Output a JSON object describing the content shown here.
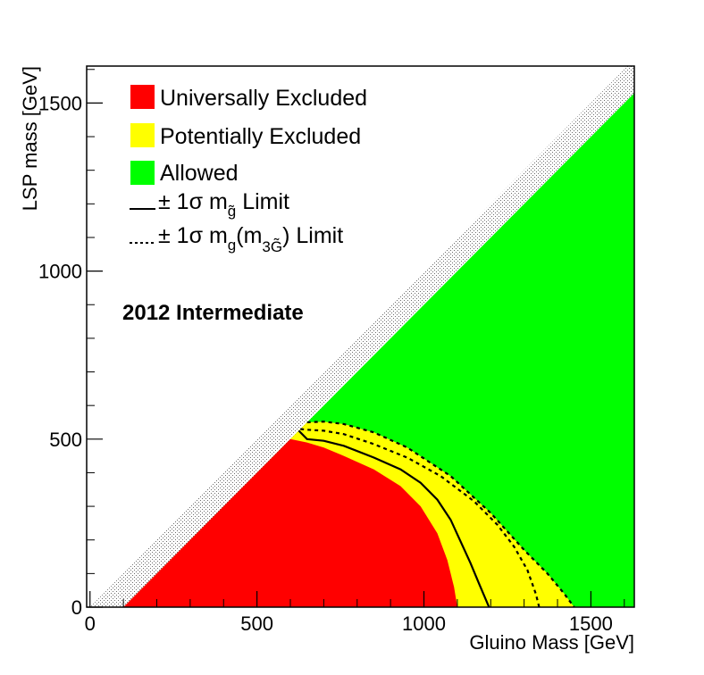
{
  "chart_data": {
    "type": "area",
    "xlabel": "Gluino Mass [GeV]",
    "ylabel": "LSP mass [GeV]",
    "xlim": [
      -10,
      1630
    ],
    "ylim": [
      0,
      1610
    ],
    "xticks": [
      0,
      500,
      1000,
      1500
    ],
    "yticks": [
      0,
      500,
      1000,
      1500
    ],
    "xtick_labels": [
      "0",
      "500",
      "1000",
      "1500"
    ],
    "ytick_labels": [
      "0",
      "500",
      "1000",
      "1500"
    ],
    "annotation": "2012 Intermediate",
    "legend": {
      "placement": "top-left",
      "entries": [
        {
          "label": "Universally Excluded",
          "color": "#ff0000",
          "kind": "box"
        },
        {
          "label": "Potentially Excluded",
          "color": "#ffff00",
          "kind": "box"
        },
        {
          "label": "Allowed",
          "color": "#00ff00",
          "kind": "box"
        },
        {
          "label_main": "± 1σ m",
          "label_sub": "g̃",
          "label_tail": " Limit",
          "kind": "solid-line"
        },
        {
          "label_main": "± 1σ m",
          "label_sub": "g",
          "label_mid": "(m",
          "label_sub2": "3G̃",
          "label_tail": ") Limit",
          "kind": "dashed-line"
        }
      ]
    },
    "colors": {
      "universal": "#ff0000",
      "potential": "#ffff00",
      "allowed": "#00ff00",
      "forbidden_hatch": "#7a7a7a"
    },
    "kinematic_limit": {
      "name": "diagonal LSP = gluino",
      "points": [
        [
          0,
          0
        ],
        [
          1600,
          1600
        ]
      ]
    },
    "forbidden_band": {
      "name": "hatched near-diagonal band",
      "offset_gev": 100
    },
    "series": [
      {
        "name": "Universally Excluded",
        "type": "region",
        "boundary": [
          [
            100,
            0
          ],
          [
            600,
            500
          ],
          [
            650,
            490
          ],
          [
            700,
            475
          ],
          [
            760,
            450
          ],
          [
            850,
            410
          ],
          [
            930,
            360
          ],
          [
            990,
            300
          ],
          [
            1040,
            220
          ],
          [
            1070,
            140
          ],
          [
            1090,
            60
          ],
          [
            1100,
            0
          ]
        ]
      },
      {
        "name": "Potentially Excluded",
        "type": "region",
        "boundary": [
          [
            600,
            500
          ],
          [
            650,
            550
          ],
          [
            700,
            552
          ],
          [
            760,
            545
          ],
          [
            850,
            520
          ],
          [
            950,
            475
          ],
          [
            1080,
            390
          ],
          [
            1200,
            280
          ],
          [
            1300,
            170
          ],
          [
            1370,
            100
          ],
          [
            1420,
            40
          ],
          [
            1450,
            0
          ],
          [
            1100,
            0
          ]
        ]
      },
      {
        "name": "+1σ gluino limit (solid)",
        "type": "line",
        "style": "solid",
        "points": [
          [
            625,
            525
          ],
          [
            650,
            500
          ],
          [
            700,
            495
          ],
          [
            760,
            480
          ],
          [
            850,
            445
          ],
          [
            930,
            410
          ],
          [
            990,
            370
          ],
          [
            1040,
            320
          ],
          [
            1080,
            260
          ],
          [
            1110,
            195
          ],
          [
            1140,
            130
          ],
          [
            1165,
            70
          ],
          [
            1195,
            0
          ]
        ]
      },
      {
        "name": "+1σ m_g(m_3G) limit (dashed)",
        "type": "line",
        "style": "dashed",
        "points": [
          [
            630,
            530
          ],
          [
            650,
            528
          ],
          [
            700,
            525
          ],
          [
            760,
            515
          ],
          [
            850,
            485
          ],
          [
            950,
            445
          ],
          [
            1050,
            390
          ],
          [
            1150,
            315
          ],
          [
            1220,
            245
          ],
          [
            1270,
            180
          ],
          [
            1310,
            110
          ],
          [
            1335,
            40
          ],
          [
            1345,
            0
          ]
        ]
      },
      {
        "name": "-1σ m_g(m_3G) limit (dashed)",
        "type": "line",
        "style": "dashed",
        "points": [
          [
            650,
            550
          ],
          [
            700,
            552
          ],
          [
            760,
            545
          ],
          [
            850,
            520
          ],
          [
            950,
            475
          ],
          [
            1080,
            390
          ],
          [
            1200,
            280
          ],
          [
            1300,
            170
          ],
          [
            1370,
            100
          ],
          [
            1420,
            40
          ],
          [
            1450,
            0
          ]
        ]
      }
    ]
  }
}
